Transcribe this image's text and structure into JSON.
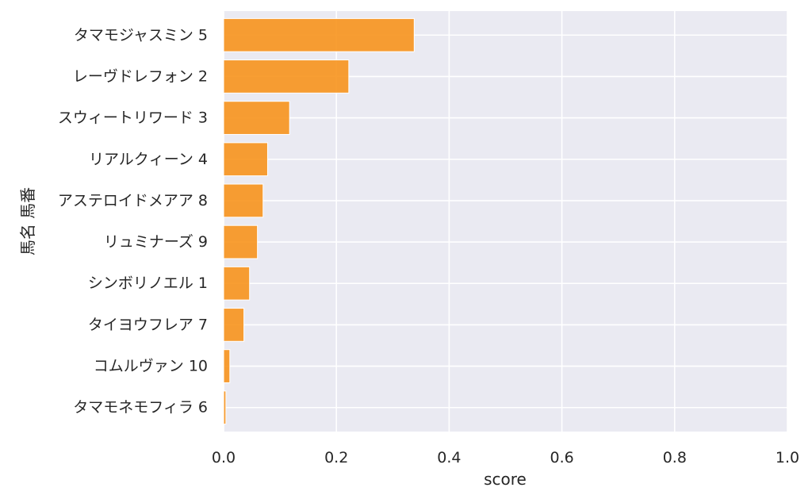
{
  "chart_data": {
    "type": "bar",
    "orientation": "horizontal",
    "categories": [
      "タマモジャスミン 5",
      "レーヴドレフォン 2",
      "スウィートリワード 3",
      "リアルクィーン 4",
      "アステロイドメアア 8",
      "リュミナーズ 9",
      "シンボリノエル 1",
      "タイヨウフレア 7",
      "コムルヴァン 10",
      "タマモネモフィラ 6"
    ],
    "values": [
      0.338,
      0.222,
      0.117,
      0.078,
      0.07,
      0.06,
      0.046,
      0.036,
      0.011,
      0.004
    ],
    "xlabel": "score",
    "ylabel": "馬名 馬番",
    "xlim": [
      0.0,
      1.0
    ],
    "xticks": [
      "0.0",
      "0.2",
      "0.4",
      "0.6",
      "0.8",
      "1.0"
    ],
    "grid": true,
    "colors": {
      "bar": "#f7941d",
      "background": "#eaeaf2",
      "grid": "#ffffff",
      "text": "#262626"
    }
  }
}
